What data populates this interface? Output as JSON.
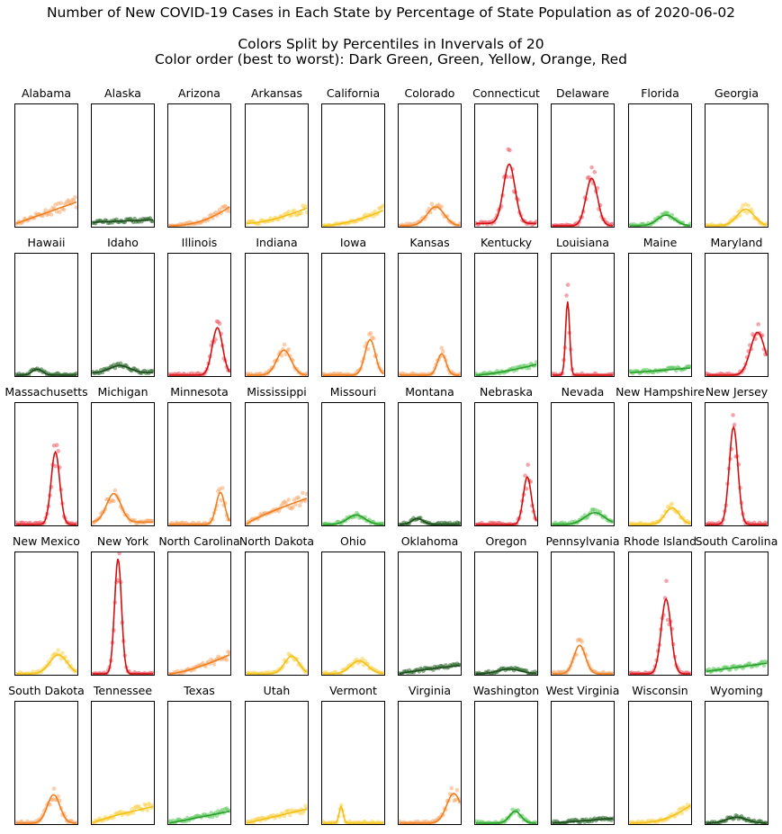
{
  "figure": {
    "title": "Number of New COVID-19 Cases in Each State by Percentage of State Population as of 2020-06-02",
    "subtitle1": "Colors Split by Percentiles in Invervals of 20",
    "subtitle2": "Color order (best to worst): Dark Green, Green, Yellow, Orange, Red"
  },
  "colors": {
    "dark_green": {
      "line": "#1e4d1e",
      "dots": "#2f6b2f"
    },
    "green": {
      "line": "#2ca02c",
      "dots": "#5cc85c"
    },
    "yellow": {
      "line": "#f2c21a",
      "dots": "#fbd24e"
    },
    "orange": {
      "line": "#f07f1e",
      "dots": "#f7a86a"
    },
    "red": {
      "line": "#d40f0f",
      "dots": "#ec5a66"
    }
  },
  "chart_data": {
    "type": "scatter",
    "description_of_axes": "Each small panel: x = days (hidden ticks), y = new cases as share of state population (hidden ticks, shared 0–1 scale)",
    "ylim": [
      0,
      1
    ],
    "grid": false,
    "panels": [
      {
        "state": "Alabama",
        "color": "orange",
        "shape": "ramp",
        "start": 0.02,
        "end": 0.2,
        "peak_pos": 1,
        "spread": 0.3
      },
      {
        "state": "Alaska",
        "color": "dark_green",
        "shape": "flat",
        "start": 0.03,
        "end": 0.05
      },
      {
        "state": "Arizona",
        "color": "orange",
        "shape": "ramp",
        "start": 0.0,
        "end": 0.16,
        "curve": 2.2
      },
      {
        "state": "Arkansas",
        "color": "yellow",
        "shape": "ramp",
        "start": 0.02,
        "end": 0.15,
        "curve": 1.6
      },
      {
        "state": "California",
        "color": "yellow",
        "shape": "ramp",
        "start": 0.0,
        "end": 0.13,
        "curve": 1.6
      },
      {
        "state": "Colorado",
        "color": "orange",
        "shape": "hump",
        "peak": 0.16,
        "peak_pos": 0.6,
        "width": 0.3,
        "base": 0.0
      },
      {
        "state": "Connecticut",
        "color": "red",
        "shape": "hump",
        "peak": 0.5,
        "peak_pos": 0.55,
        "width": 0.2,
        "base": 0.02
      },
      {
        "state": "Delaware",
        "color": "red",
        "shape": "hump",
        "peak": 0.4,
        "peak_pos": 0.65,
        "width": 0.2,
        "base": 0.0
      },
      {
        "state": "Florida",
        "color": "green",
        "shape": "hump",
        "peak": 0.09,
        "peak_pos": 0.6,
        "width": 0.3,
        "base": 0.0
      },
      {
        "state": "Georgia",
        "color": "yellow",
        "shape": "hump",
        "peak": 0.14,
        "peak_pos": 0.65,
        "width": 0.3,
        "base": 0.0
      },
      {
        "state": "Hawaii",
        "color": "dark_green",
        "shape": "hump",
        "peak": 0.05,
        "peak_pos": 0.35,
        "width": 0.18,
        "base": 0.0
      },
      {
        "state": "Idaho",
        "color": "dark_green",
        "shape": "hump",
        "peak": 0.06,
        "peak_pos": 0.45,
        "width": 0.35,
        "base": 0.02
      },
      {
        "state": "Illinois",
        "color": "red",
        "shape": "hump",
        "peak": 0.4,
        "peak_pos": 0.8,
        "width": 0.18,
        "base": 0.0
      },
      {
        "state": "Indiana",
        "color": "orange",
        "shape": "hump",
        "peak": 0.21,
        "peak_pos": 0.62,
        "width": 0.25,
        "base": 0.0
      },
      {
        "state": "Iowa",
        "color": "orange",
        "shape": "hump",
        "peak": 0.3,
        "peak_pos": 0.78,
        "width": 0.18,
        "base": 0.0
      },
      {
        "state": "Kansas",
        "color": "orange",
        "shape": "hump",
        "peak": 0.18,
        "peak_pos": 0.7,
        "width": 0.15,
        "base": 0.0
      },
      {
        "state": "Kentucky",
        "color": "green",
        "shape": "ramp",
        "start": 0.0,
        "end": 0.09,
        "curve": 1.4
      },
      {
        "state": "Louisiana",
        "color": "red",
        "shape": "hump",
        "peak": 0.62,
        "peak_pos": 0.25,
        "width": 0.07,
        "base": 0.0
      },
      {
        "state": "Maine",
        "color": "green",
        "shape": "ramp",
        "start": 0.02,
        "end": 0.06,
        "curve": 1.0
      },
      {
        "state": "Maryland",
        "color": "red",
        "shape": "hump",
        "peak": 0.36,
        "peak_pos": 0.85,
        "width": 0.25,
        "base": 0.0
      },
      {
        "state": "Massachusetts",
        "color": "red",
        "shape": "hump",
        "peak": 0.61,
        "peak_pos": 0.65,
        "width": 0.15,
        "base": 0.0
      },
      {
        "state": "Michigan",
        "color": "orange",
        "shape": "hump",
        "peak": 0.24,
        "peak_pos": 0.35,
        "width": 0.25,
        "base": 0.02
      },
      {
        "state": "Minnesota",
        "color": "orange",
        "shape": "hump",
        "peak": 0.27,
        "peak_pos": 0.85,
        "width": 0.15,
        "base": 0.0
      },
      {
        "state": "Mississippi",
        "color": "orange",
        "shape": "ramp",
        "start": 0.0,
        "end": 0.22,
        "curve": 0.8
      },
      {
        "state": "Missouri",
        "color": "green",
        "shape": "hump",
        "peak": 0.08,
        "peak_pos": 0.55,
        "width": 0.3,
        "base": 0.0
      },
      {
        "state": "Montana",
        "color": "dark_green",
        "shape": "hump",
        "peak": 0.05,
        "peak_pos": 0.3,
        "width": 0.2,
        "base": 0.0
      },
      {
        "state": "Nebraska",
        "color": "red",
        "shape": "hump",
        "peak": 0.4,
        "peak_pos": 0.85,
        "width": 0.14,
        "base": 0.0
      },
      {
        "state": "Nevada",
        "color": "green",
        "shape": "hump",
        "peak": 0.1,
        "peak_pos": 0.7,
        "width": 0.35,
        "base": 0.0
      },
      {
        "state": "New Hampshire",
        "color": "yellow",
        "shape": "hump",
        "peak": 0.14,
        "peak_pos": 0.7,
        "width": 0.25,
        "base": 0.0
      },
      {
        "state": "New Jersey",
        "color": "red",
        "shape": "hump",
        "peak": 0.82,
        "peak_pos": 0.45,
        "width": 0.15,
        "base": 0.0
      },
      {
        "state": "New Mexico",
        "color": "yellow",
        "shape": "hump",
        "peak": 0.16,
        "peak_pos": 0.7,
        "width": 0.3,
        "base": 0.0
      },
      {
        "state": "New York",
        "color": "red",
        "shape": "hump",
        "peak": 0.97,
        "peak_pos": 0.42,
        "width": 0.12,
        "base": 0.0
      },
      {
        "state": "North Carolina",
        "color": "orange",
        "shape": "ramp",
        "start": 0.0,
        "end": 0.16,
        "curve": 1.4
      },
      {
        "state": "North Dakota",
        "color": "yellow",
        "shape": "hump",
        "peak": 0.15,
        "peak_pos": 0.75,
        "width": 0.25,
        "base": 0.0
      },
      {
        "state": "Ohio",
        "color": "yellow",
        "shape": "hump",
        "peak": 0.11,
        "peak_pos": 0.6,
        "width": 0.3,
        "base": 0.0
      },
      {
        "state": "Oklahoma",
        "color": "dark_green",
        "shape": "ramp",
        "start": 0.0,
        "end": 0.07,
        "curve": 0.8
      },
      {
        "state": "Oregon",
        "color": "dark_green",
        "shape": "hump",
        "peak": 0.04,
        "peak_pos": 0.55,
        "width": 0.4,
        "base": 0.0
      },
      {
        "state": "Pennsylvania",
        "color": "orange",
        "shape": "hump",
        "peak": 0.24,
        "peak_pos": 0.45,
        "width": 0.2,
        "base": 0.0
      },
      {
        "state": "Rhode Island",
        "color": "red",
        "shape": "hump",
        "peak": 0.63,
        "peak_pos": 0.6,
        "width": 0.17,
        "base": 0.0
      },
      {
        "state": "South Carolina",
        "color": "green",
        "shape": "ramp",
        "start": 0.02,
        "end": 0.09,
        "curve": 1.0
      },
      {
        "state": "South Dakota",
        "color": "orange",
        "shape": "hump",
        "peak": 0.24,
        "peak_pos": 0.62,
        "width": 0.22,
        "base": 0.0
      },
      {
        "state": "Tennessee",
        "color": "yellow",
        "shape": "ramp",
        "start": 0.0,
        "end": 0.14,
        "curve": 0.8
      },
      {
        "state": "Texas",
        "color": "green",
        "shape": "ramp",
        "start": 0.0,
        "end": 0.1,
        "curve": 1.0
      },
      {
        "state": "Utah",
        "color": "yellow",
        "shape": "ramp",
        "start": 0.0,
        "end": 0.12,
        "curve": 1.0
      },
      {
        "state": "Vermont",
        "color": "yellow",
        "shape": "hump",
        "peak": 0.14,
        "peak_pos": 0.3,
        "width": 0.07,
        "base": 0.0
      },
      {
        "state": "Virginia",
        "color": "orange",
        "shape": "hump",
        "peak": 0.25,
        "peak_pos": 0.9,
        "width": 0.25,
        "base": 0.0
      },
      {
        "state": "Washington",
        "color": "green",
        "shape": "hump",
        "peak": 0.1,
        "peak_pos": 0.65,
        "width": 0.2,
        "base": 0.0
      },
      {
        "state": "West Virginia",
        "color": "dark_green",
        "shape": "ramp",
        "start": 0.0,
        "end": 0.04,
        "curve": 1.0
      },
      {
        "state": "Wisconsin",
        "color": "yellow",
        "shape": "ramp",
        "start": 0.0,
        "end": 0.15,
        "curve": 2.5
      },
      {
        "state": "Wyoming",
        "color": "dark_green",
        "shape": "hump",
        "peak": 0.05,
        "peak_pos": 0.5,
        "width": 0.35,
        "base": 0.0
      }
    ]
  }
}
